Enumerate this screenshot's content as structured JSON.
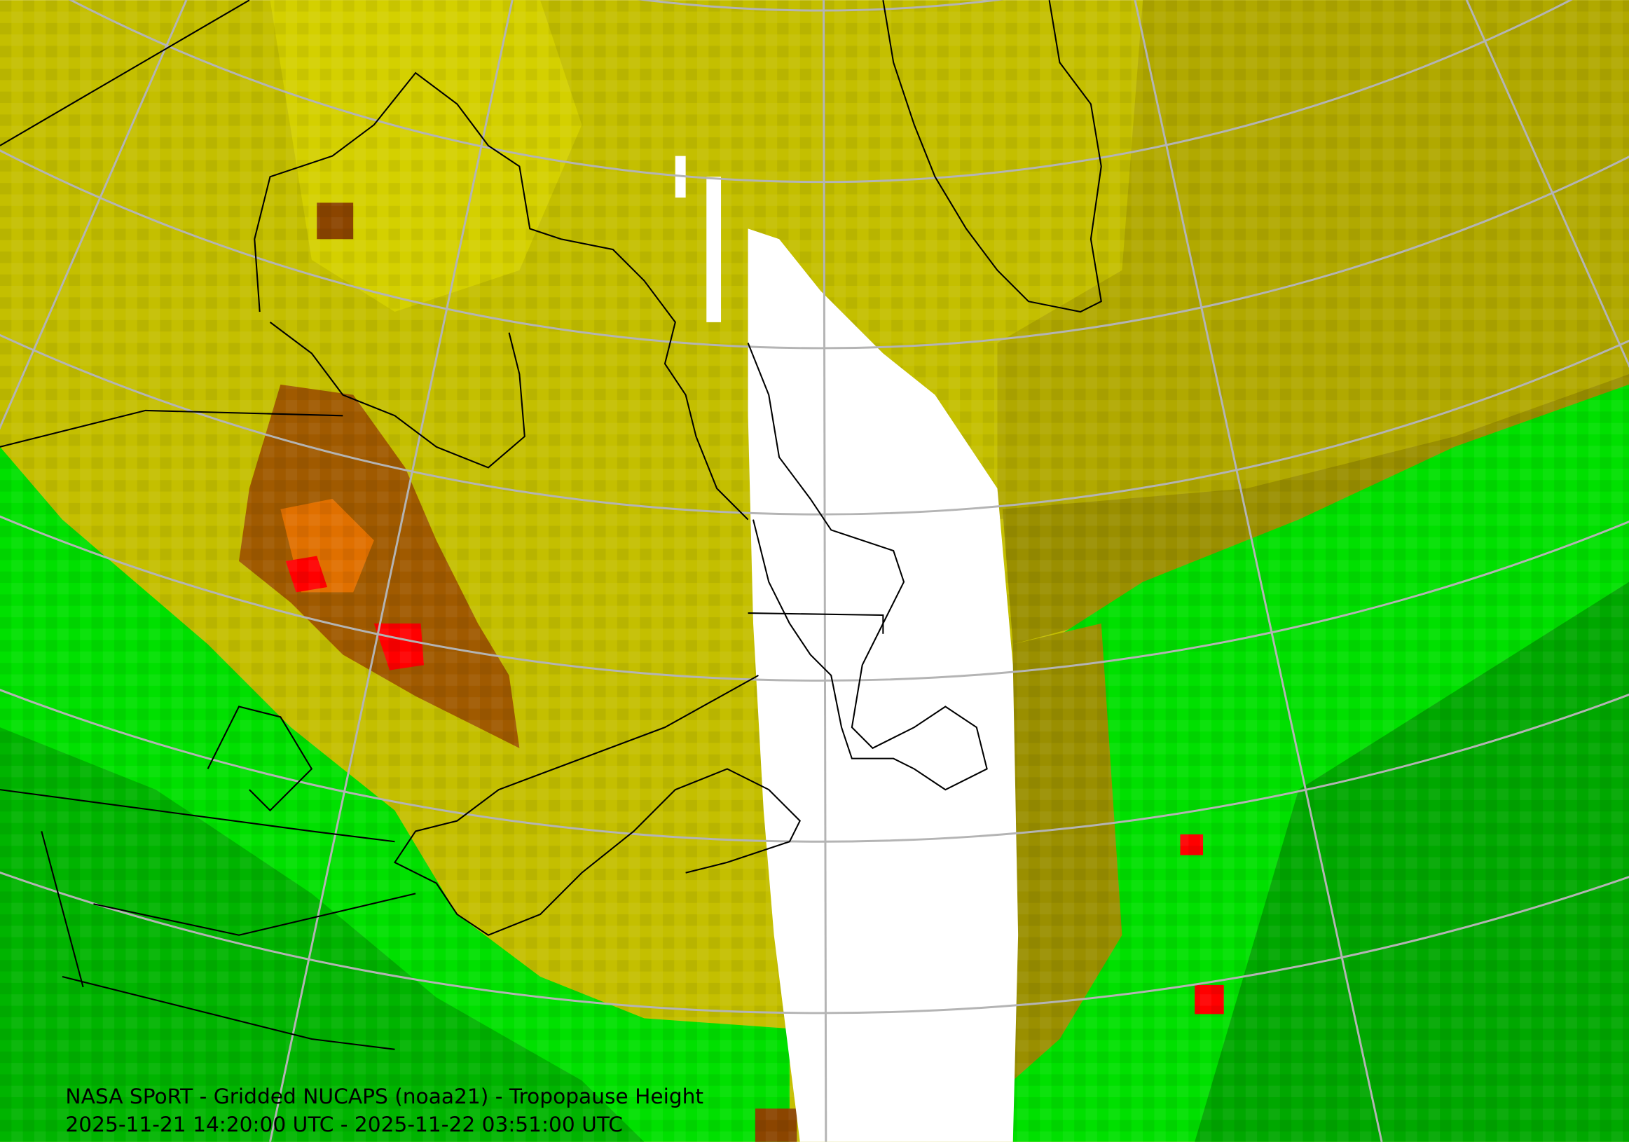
{
  "caption": {
    "line1": "NASA SPoRT - Gridded NUCAPS (noaa21) - Tropopause Height",
    "line2": "2025-11-21 14:20:00 UTC - 2025-11-22 03:51:00 UTC"
  }
}
